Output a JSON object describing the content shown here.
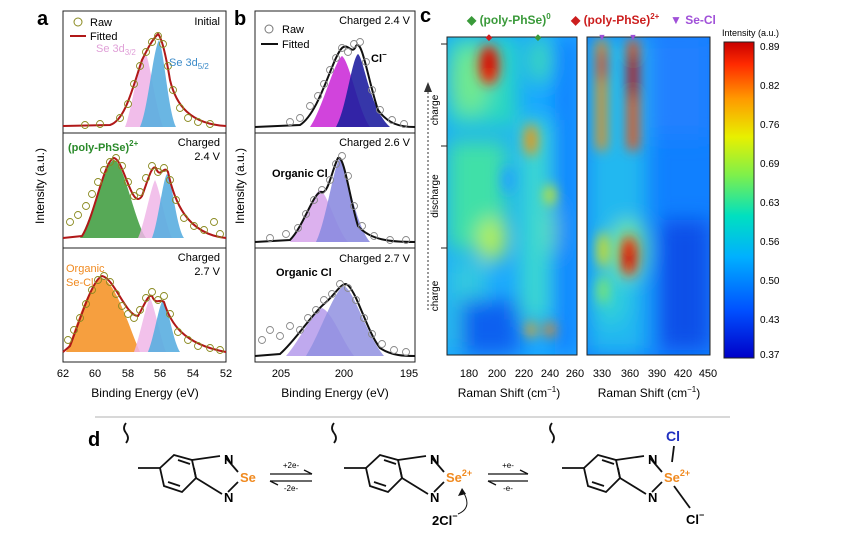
{
  "panel_a": {
    "letter": "a",
    "legend": [
      "Raw",
      "Fitted"
    ],
    "ylabel": "Intensity (a.u.)",
    "xlabel": "Binding Energy (eV)",
    "xticks": [
      "62",
      "60",
      "58",
      "56",
      "54",
      "52"
    ],
    "p1": {
      "state": "Initial",
      "peak1": "Se 3d",
      "peak1_sub": "3/2",
      "peak2": "Se 3d",
      "peak2_sub": "5/2"
    },
    "p2": {
      "species": "(poly-PhSe)",
      "species_sup": "2+",
      "state1": "Charged",
      "state2": "2.4 V"
    },
    "p3": {
      "species1": "Organic",
      "species2": "Se-Cl",
      "state1": "Charged",
      "state2": "2.7 V"
    }
  },
  "panel_b": {
    "letter": "b",
    "legend": [
      "Raw",
      "Fitted"
    ],
    "ylabel": "Intensity (a.u.)",
    "xlabel": "Binding Energy (eV)",
    "xticks": [
      "205",
      "200",
      "195"
    ],
    "p1": {
      "state": "Charged 2.4 V",
      "species": "Cl",
      "species_sup": "−"
    },
    "p2": {
      "state": "Charged 2.6 V",
      "species": "Organic Cl"
    },
    "p3": {
      "state": "Charged 2.7 V",
      "species": "Organic Cl"
    }
  },
  "panel_c": {
    "letter": "c",
    "legend": [
      {
        "label": "(poly-PhSe)",
        "sup": "0",
        "color": "#3a9a3a"
      },
      {
        "label": "(poly-PhSe)",
        "sup": "2+",
        "color": "#cc1e1e"
      },
      {
        "label": "Se-Cl",
        "sup": "",
        "color": "#a050d8"
      }
    ],
    "ylabels": [
      "charge",
      "discharge",
      "charge"
    ],
    "xlabel": "Raman Shift (cm",
    "xlabel_sup": "−1",
    "xticks_left": [
      "180",
      "200",
      "220",
      "240",
      "260"
    ],
    "xticks_right": [
      "330",
      "360",
      "390",
      "420",
      "450"
    ],
    "colorbar_title": "Intensity (a.u.)",
    "colorbar_ticks": [
      "0.89",
      "0.82",
      "0.76",
      "0.69",
      "0.63",
      "0.56",
      "0.50",
      "0.43",
      "0.37"
    ]
  },
  "panel_d": {
    "letter": "d",
    "N": "N",
    "Se": "Se",
    "Se2": "Se",
    "sup2": "2+",
    "Cl": "Cl",
    "Clminus": "Cl",
    "minus": "−",
    "step1_top": "+2e-",
    "step1_bottom": "-2e-",
    "step2_top": "+e-",
    "step2_bottom": "-e-",
    "twoCl": "2Cl"
  }
}
